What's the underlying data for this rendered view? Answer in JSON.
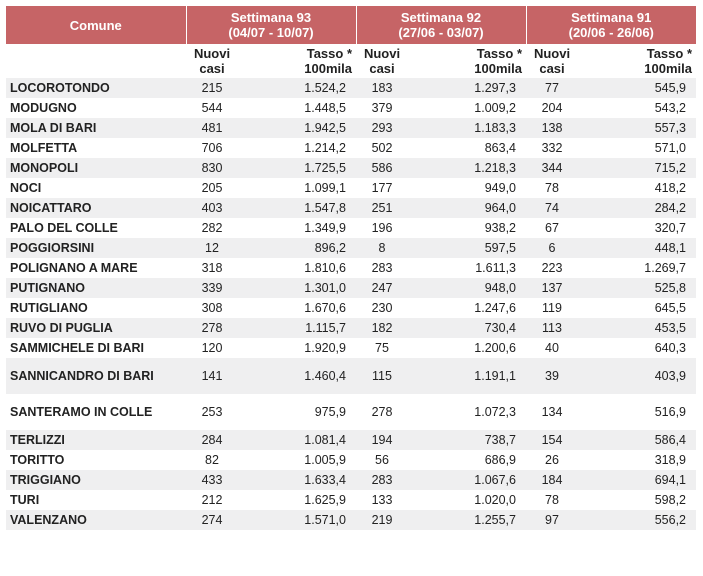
{
  "header": {
    "comune": "Comune",
    "weeks": [
      {
        "title": "Settimana 93",
        "range": "(04/07 - 10/07)"
      },
      {
        "title": "Settimana 92",
        "range": "(27/06 - 03/07)"
      },
      {
        "title": "Settimana 91",
        "range": "(20/06 - 26/06)"
      }
    ],
    "nuovi": [
      "Nuovi",
      "casi"
    ],
    "tasso": [
      "Tasso *",
      "100mila"
    ]
  },
  "rows": [
    {
      "name": "LOCOROTONDO",
      "w93_n": "215",
      "w93_t": "1.524,2",
      "w92_n": "183",
      "w92_t": "1.297,3",
      "w91_n": "77",
      "w91_t": "545,9"
    },
    {
      "name": "MODUGNO",
      "w93_n": "544",
      "w93_t": "1.448,5",
      "w92_n": "379",
      "w92_t": "1.009,2",
      "w91_n": "204",
      "w91_t": "543,2"
    },
    {
      "name": "MOLA DI BARI",
      "w93_n": "481",
      "w93_t": "1.942,5",
      "w92_n": "293",
      "w92_t": "1.183,3",
      "w91_n": "138",
      "w91_t": "557,3"
    },
    {
      "name": "MOLFETTA",
      "w93_n": "706",
      "w93_t": "1.214,2",
      "w92_n": "502",
      "w92_t": "863,4",
      "w91_n": "332",
      "w91_t": "571,0"
    },
    {
      "name": "MONOPOLI",
      "w93_n": "830",
      "w93_t": "1.725,5",
      "w92_n": "586",
      "w92_t": "1.218,3",
      "w91_n": "344",
      "w91_t": "715,2"
    },
    {
      "name": "NOCI",
      "w93_n": "205",
      "w93_t": "1.099,1",
      "w92_n": "177",
      "w92_t": "949,0",
      "w91_n": "78",
      "w91_t": "418,2"
    },
    {
      "name": "NOICATTARO",
      "w93_n": "403",
      "w93_t": "1.547,8",
      "w92_n": "251",
      "w92_t": "964,0",
      "w91_n": "74",
      "w91_t": "284,2"
    },
    {
      "name": "PALO DEL COLLE",
      "w93_n": "282",
      "w93_t": "1.349,9",
      "w92_n": "196",
      "w92_t": "938,2",
      "w91_n": "67",
      "w91_t": "320,7"
    },
    {
      "name": "POGGIORSINI",
      "w93_n": "12",
      "w93_t": "896,2",
      "w92_n": "8",
      "w92_t": "597,5",
      "w91_n": "6",
      "w91_t": "448,1"
    },
    {
      "name": "POLIGNANO A MARE",
      "w93_n": "318",
      "w93_t": "1.810,6",
      "w92_n": "283",
      "w92_t": "1.611,3",
      "w91_n": "223",
      "w91_t": "1.269,7"
    },
    {
      "name": "PUTIGNANO",
      "w93_n": "339",
      "w93_t": "1.301,0",
      "w92_n": "247",
      "w92_t": "948,0",
      "w91_n": "137",
      "w91_t": "525,8"
    },
    {
      "name": "RUTIGLIANO",
      "w93_n": "308",
      "w93_t": "1.670,6",
      "w92_n": "230",
      "w92_t": "1.247,6",
      "w91_n": "119",
      "w91_t": "645,5"
    },
    {
      "name": "RUVO DI PUGLIA",
      "w93_n": "278",
      "w93_t": "1.115,7",
      "w92_n": "182",
      "w92_t": "730,4",
      "w91_n": "113",
      "w91_t": "453,5"
    },
    {
      "name": "SAMMICHELE DI BARI",
      "w93_n": "120",
      "w93_t": "1.920,9",
      "w92_n": "75",
      "w92_t": "1.200,6",
      "w91_n": "40",
      "w91_t": "640,3"
    },
    {
      "name": "SANNICANDRO DI BARI",
      "w93_n": "141",
      "w93_t": "1.460,4",
      "w92_n": "115",
      "w92_t": "1.191,1",
      "w91_n": "39",
      "w91_t": "403,9",
      "tall": true
    },
    {
      "name": "SANTERAMO IN COLLE",
      "w93_n": "253",
      "w93_t": "975,9",
      "w92_n": "278",
      "w92_t": "1.072,3",
      "w91_n": "134",
      "w91_t": "516,9",
      "tall": true
    },
    {
      "name": "TERLIZZI",
      "w93_n": "284",
      "w93_t": "1.081,4",
      "w92_n": "194",
      "w92_t": "738,7",
      "w91_n": "154",
      "w91_t": "586,4"
    },
    {
      "name": "TORITTO",
      "w93_n": "82",
      "w93_t": "1.005,9",
      "w92_n": "56",
      "w92_t": "686,9",
      "w91_n": "26",
      "w91_t": "318,9"
    },
    {
      "name": "TRIGGIANO",
      "w93_n": "433",
      "w93_t": "1.633,4",
      "w92_n": "283",
      "w92_t": "1.067,6",
      "w91_n": "184",
      "w91_t": "694,1"
    },
    {
      "name": "TURI",
      "w93_n": "212",
      "w93_t": "1.625,9",
      "w92_n": "133",
      "w92_t": "1.020,0",
      "w91_n": "78",
      "w91_t": "598,2"
    },
    {
      "name": "VALENZANO",
      "w93_n": "274",
      "w93_t": "1.571,0",
      "w92_n": "219",
      "w92_t": "1.255,7",
      "w91_n": "97",
      "w91_t": "556,2"
    }
  ]
}
